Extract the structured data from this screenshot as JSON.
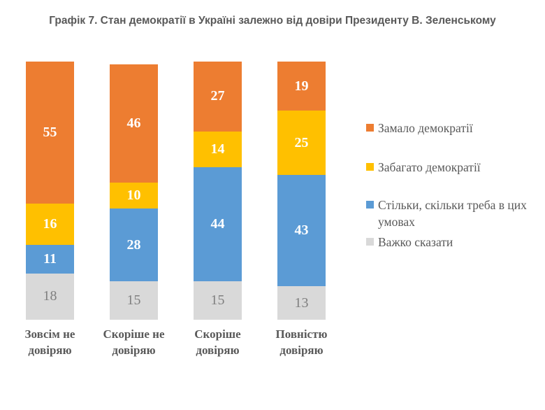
{
  "title": "Графік 7. Стан демократії в Україні залежно від довіри Президенту В. Зеленському",
  "chart_data": {
    "type": "bar",
    "stacked": true,
    "orientation": "vertical",
    "title": "Графік 7. Стан демократії в Україні залежно від довіри Президенту В. Зеленському",
    "categories": [
      "Зовсім не довіряю",
      "Скоріше не довіряю",
      "Скоріше довіряю",
      "Повністю довіряю"
    ],
    "series": [
      {
        "name": "Замало демократії",
        "color": "#ED7D31",
        "values": [
          55,
          46,
          27,
          19
        ]
      },
      {
        "name": "Забагато демократії",
        "color": "#FFC000",
        "values": [
          16,
          10,
          14,
          25
        ]
      },
      {
        "name": "Стільки, скільки треба в цих умовах",
        "color": "#5B9BD5",
        "values": [
          11,
          28,
          44,
          43
        ]
      },
      {
        "name": "Важко сказати",
        "color": "#D9D9D9",
        "values": [
          18,
          15,
          15,
          13
        ]
      }
    ],
    "value_labels": true,
    "grid": false,
    "legend_position": "right",
    "ylim": [
      0,
      100
    ],
    "colors": {
      "title_text": "#595959",
      "axis_text": "#595959",
      "legend_text": "#595959",
      "label_on_fill": "#FFFFFF",
      "label_on_gray": "#7F7F7F"
    }
  }
}
